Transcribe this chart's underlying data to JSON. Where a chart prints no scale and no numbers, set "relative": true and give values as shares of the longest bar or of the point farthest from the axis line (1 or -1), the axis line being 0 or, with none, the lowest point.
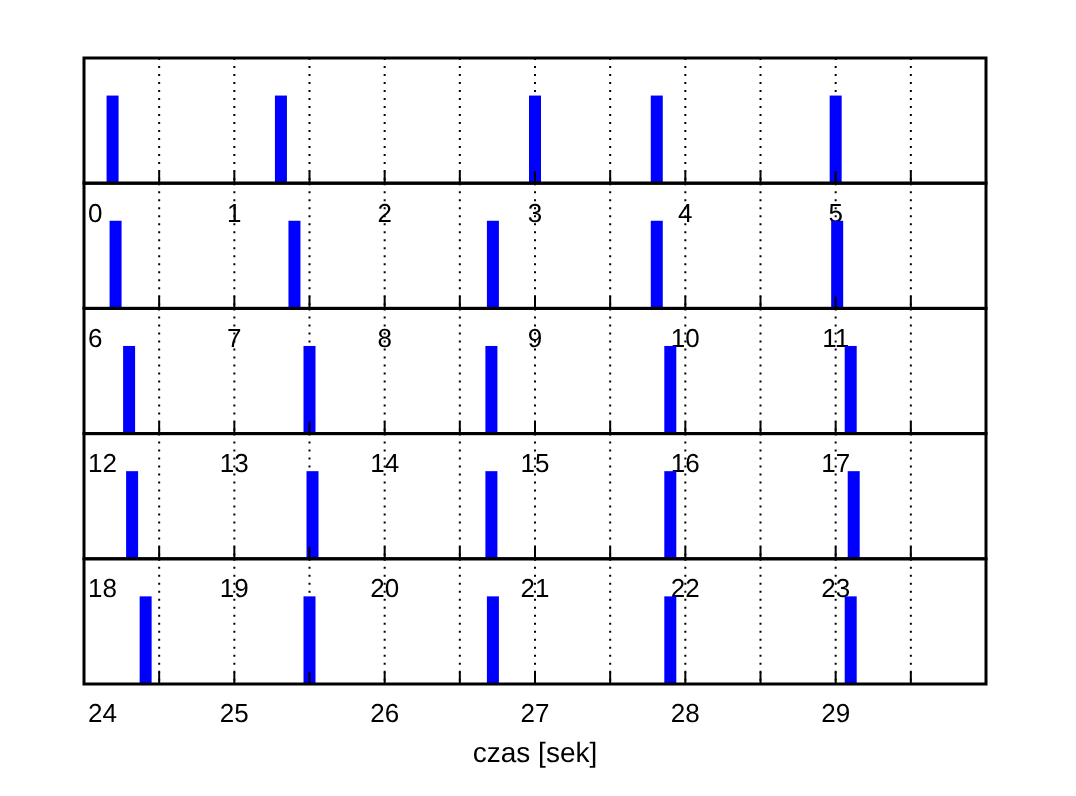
{
  "chart_data": [
    {
      "type": "bar",
      "x": [
        0.19,
        1.31,
        3.0,
        3.81,
        5.0
      ],
      "values": [
        1,
        1,
        1,
        1,
        1
      ],
      "relative": true,
      "color": "#0000ff",
      "xlim": [
        0,
        6
      ],
      "xticks": [
        0,
        {
          "value": 0.5,
          "label": null
        },
        1,
        {
          "value": 1.5,
          "label": null
        },
        2,
        {
          "value": 2.5,
          "label": null
        },
        3,
        {
          "value": 3.5,
          "label": null
        },
        4,
        {
          "value": 4.5,
          "label": null
        },
        5,
        {
          "value": 5.5,
          "label": null
        }
      ],
      "grid": "x",
      "tick_labels": "x"
    },
    {
      "type": "bar",
      "x": [
        6.21,
        7.4,
        8.72,
        9.81,
        11.01
      ],
      "values": [
        1,
        1,
        1,
        1,
        1
      ],
      "relative": true,
      "color": "#0000ff",
      "xlim": [
        6,
        12
      ],
      "xticks": [
        6,
        {
          "value": 6.5,
          "label": null
        },
        7,
        {
          "value": 7.5,
          "label": null
        },
        8,
        {
          "value": 8.5,
          "label": null
        },
        9,
        {
          "value": 9.5,
          "label": null
        },
        10,
        {
          "value": 10.5,
          "label": null
        },
        11,
        {
          "value": 11.5,
          "label": null
        }
      ],
      "grid": "x",
      "tick_labels": "x"
    },
    {
      "type": "bar",
      "x": [
        12.3,
        13.5,
        14.71,
        15.9,
        17.1
      ],
      "values": [
        1,
        1,
        1,
        1,
        1
      ],
      "relative": true,
      "color": "#0000ff",
      "xlim": [
        12,
        18
      ],
      "xticks": [
        12,
        {
          "value": 12.5,
          "label": null
        },
        13,
        {
          "value": 13.5,
          "label": null
        },
        14,
        {
          "value": 14.5,
          "label": null
        },
        15,
        {
          "value": 15.5,
          "label": null
        },
        16,
        {
          "value": 16.5,
          "label": null
        },
        17,
        {
          "value": 17.5,
          "label": null
        }
      ],
      "grid": "x",
      "tick_labels": "x"
    },
    {
      "type": "bar",
      "x": [
        18.32,
        19.52,
        20.71,
        21.9,
        23.12
      ],
      "values": [
        1,
        1,
        1,
        1,
        1
      ],
      "relative": true,
      "color": "#0000ff",
      "xlim": [
        18,
        24
      ],
      "xticks": [
        18,
        {
          "value": 18.5,
          "label": null
        },
        19,
        {
          "value": 19.5,
          "label": null
        },
        20,
        {
          "value": 20.5,
          "label": null
        },
        21,
        {
          "value": 21.5,
          "label": null
        },
        22,
        {
          "value": 22.5,
          "label": null
        },
        23,
        {
          "value": 23.5,
          "label": null
        }
      ],
      "grid": "x",
      "tick_labels": "x"
    },
    {
      "type": "bar",
      "x": [
        24.41,
        25.5,
        26.72,
        27.9,
        29.1
      ],
      "values": [
        1,
        1,
        1,
        1,
        1
      ],
      "relative": true,
      "color": "#0000ff",
      "xlim": [
        24,
        30
      ],
      "xticks": [
        24,
        {
          "value": 24.5,
          "label": null
        },
        25,
        {
          "value": 25.5,
          "label": null
        },
        26,
        {
          "value": 26.5,
          "label": null
        },
        27,
        {
          "value": 27.5,
          "label": null
        },
        28,
        {
          "value": 28.5,
          "label": null
        },
        29,
        {
          "value": 29.5,
          "label": null
        }
      ],
      "grid": "x",
      "tick_labels": "x",
      "xlabel": "czas [sek]"
    }
  ]
}
